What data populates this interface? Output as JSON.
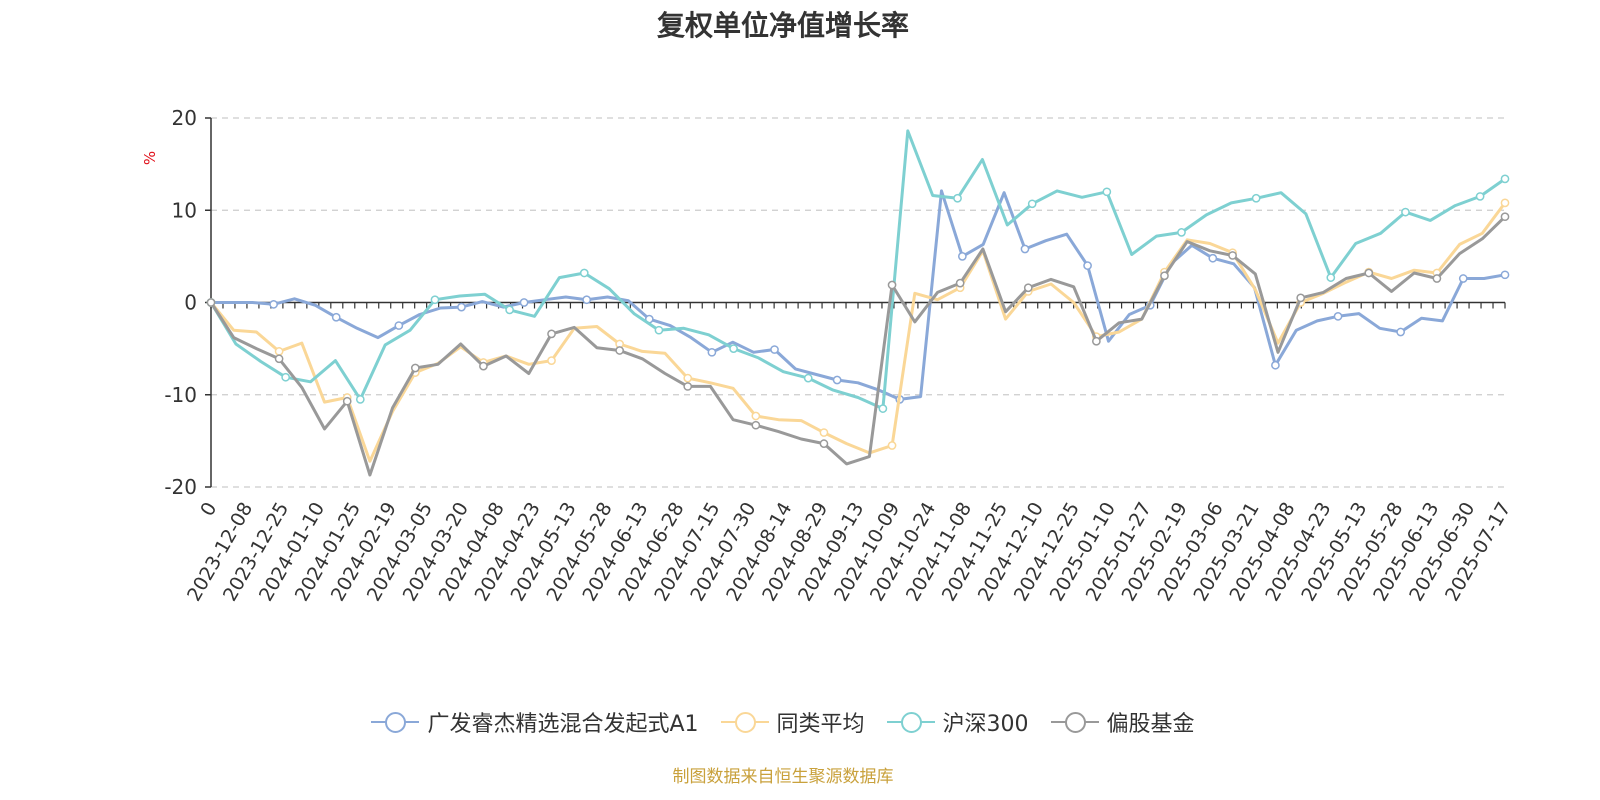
{
  "chart_data": {
    "type": "line",
    "title": "复权单位净值增长率",
    "ylabel": "%",
    "ylim": [
      -20,
      20
    ],
    "yticks": [
      -20,
      -10,
      0,
      10,
      20
    ],
    "x_tick_labels": [
      "0",
      "2023-12-08",
      "2023-12-25",
      "2024-01-10",
      "2024-01-25",
      "2024-02-19",
      "2024-03-05",
      "2024-03-20",
      "2024-04-08",
      "2024-04-23",
      "2024-05-13",
      "2024-05-28",
      "2024-06-13",
      "2024-06-28",
      "2024-07-15",
      "2024-07-30",
      "2024-08-14",
      "2024-08-29",
      "2024-09-13",
      "2024-10-09",
      "2024-10-24",
      "2024-11-08",
      "2024-11-25",
      "2024-12-10",
      "2024-12-25",
      "2025-01-10",
      "2025-01-27",
      "2025-02-19",
      "2025-03-06",
      "2025-03-21",
      "2025-04-08",
      "2025-04-23",
      "2025-05-13",
      "2025-05-28",
      "2025-06-13",
      "2025-06-30",
      "2025-07-17"
    ],
    "grid": "horizontal dashed",
    "legend_position": "bottom",
    "series": [
      {
        "name": "广发睿杰精选混合发起式A1",
        "color": "#8aa8d8",
        "values": [
          0,
          0,
          0,
          -0.2,
          0.4,
          -0.3,
          -1.6,
          -2.8,
          -3.8,
          -2.5,
          -1.3,
          -0.6,
          -0.5,
          0.1,
          -0.5,
          0,
          0.3,
          0.6,
          0.3,
          0.6,
          0.2,
          -1.8,
          -2.5,
          -3.8,
          -5.4,
          -4.3,
          -5.4,
          -5.1,
          -7.2,
          -7.8,
          -8.4,
          -8.7,
          -9.5,
          -10.5,
          -10.2,
          12.1,
          5,
          6.3,
          11.9,
          5.8,
          6.7,
          7.4,
          4,
          -4.2,
          -1.3,
          -0.3,
          4.2,
          6.2,
          4.8,
          4.2,
          1.6,
          -6.8,
          -3,
          -2,
          -1.5,
          -1.2,
          -2.8,
          -3.2,
          -1.7,
          -2,
          2.6,
          2.6,
          3
        ]
      },
      {
        "name": "同类平均",
        "color": "#fad797",
        "values": [
          0,
          -3,
          -3.2,
          -5.3,
          -4.4,
          -10.8,
          -10.3,
          -17.2,
          -11.8,
          -7.6,
          -6.6,
          -4.8,
          -6.5,
          -5.8,
          -6.7,
          -6.3,
          -2.8,
          -2.6,
          -4.5,
          -5.3,
          -5.5,
          -8.2,
          -8.7,
          -9.3,
          -12.3,
          -12.7,
          -12.8,
          -14.1,
          -15.3,
          -16.3,
          -15.5,
          1,
          0.3,
          1.6,
          5.6,
          -1.8,
          1.2,
          2,
          0,
          -3.7,
          -3.2,
          -1.8,
          3.3,
          6.8,
          6.4,
          5.4,
          1.4,
          -4.4,
          0,
          1,
          2.2,
          3.3,
          2.6,
          3.5,
          3.2,
          6.3,
          7.5,
          10.8
        ]
      },
      {
        "name": "沪深300",
        "color": "#7ed0d1",
        "values": [
          0,
          -4.5,
          -6.4,
          -8.1,
          -8.6,
          -6.3,
          -10.5,
          -4.6,
          -3,
          0.3,
          0.7,
          0.9,
          -0.8,
          -1.5,
          2.7,
          3.2,
          1.5,
          -1.2,
          -3,
          -2.8,
          -3.5,
          -5,
          -6,
          -7.5,
          -8.2,
          -9.5,
          -10.3,
          -11.5,
          18.6,
          11.6,
          11.3,
          15.5,
          8.4,
          10.7,
          12.1,
          11.4,
          12,
          5.2,
          7.2,
          7.6,
          9.5,
          10.8,
          11.3,
          11.9,
          9.6,
          2.7,
          6.4,
          7.5,
          9.8,
          8.9,
          10.5,
          11.5,
          13.4
        ]
      },
      {
        "name": "偏股基金",
        "color": "#999999",
        "values": [
          0,
          -3.8,
          -5,
          -6.1,
          -9.2,
          -13.7,
          -10.7,
          -18.7,
          -11.4,
          -7.1,
          -6.7,
          -4.5,
          -6.9,
          -5.8,
          -7.7,
          -3.4,
          -2.7,
          -4.9,
          -5.2,
          -6.1,
          -7.7,
          -9.1,
          -9.1,
          -12.7,
          -13.3,
          -14,
          -14.8,
          -15.3,
          -17.5,
          -16.7,
          1.9,
          -2.1,
          1.1,
          2.1,
          5.8,
          -1,
          1.6,
          2.5,
          1.7,
          -4.2,
          -2.2,
          -1.8,
          2.9,
          6.6,
          5.6,
          5.1,
          3.1,
          -5.4,
          0.5,
          1.1,
          2.6,
          3.2,
          1.2,
          3.2,
          2.6,
          5.3,
          6.9,
          9.3
        ]
      }
    ]
  },
  "legend": {
    "items": [
      {
        "label": "广发睿杰精选混合发起式A1"
      },
      {
        "label": "同类平均"
      },
      {
        "label": "沪深300"
      },
      {
        "label": "偏股基金"
      }
    ]
  },
  "source_note": "制图数据来自恒生聚源数据库"
}
